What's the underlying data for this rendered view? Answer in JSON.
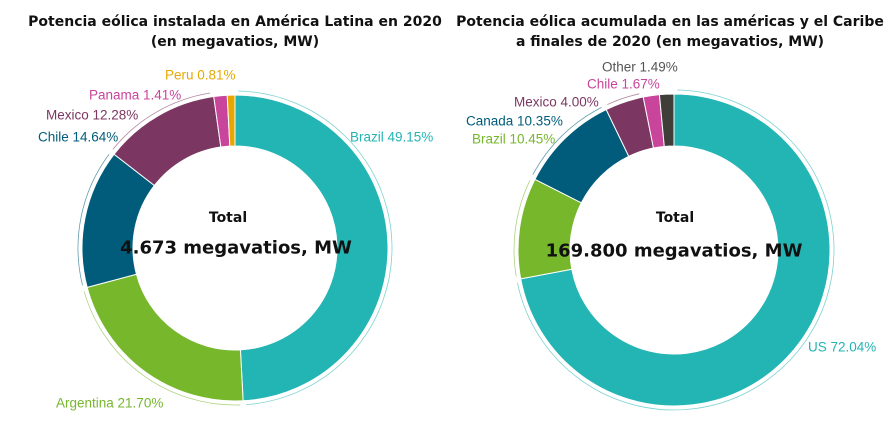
{
  "chart_data": [
    {
      "type": "pie",
      "title": "Potencia eólica instalada en América Latina en 2020 (en megavatios, MW)",
      "title_lines": [
        "Potencia eólica instalada en América Latina en 2020",
        "(en megavatios, MW)"
      ],
      "center_label": "Total",
      "center_value": "4.673 megavatios, MW",
      "slices": [
        {
          "name": "Brazil",
          "value": 49.15,
          "label": "Brazil 49.15%",
          "color": "#23b4b4"
        },
        {
          "name": "Argentina",
          "value": 21.7,
          "label": "Argentina 21.70%",
          "color": "#76b72c"
        },
        {
          "name": "Chile",
          "value": 14.64,
          "label": "Chile 14.64%",
          "color": "#005c7a"
        },
        {
          "name": "Mexico",
          "value": 12.28,
          "label": "Mexico 12.28%",
          "color": "#7b3661"
        },
        {
          "name": "Panama",
          "value": 1.41,
          "label": "Panama 1.41%",
          "color": "#c9449b"
        },
        {
          "name": "Peru",
          "value": 0.81,
          "label": "Peru 0.81%",
          "color": "#e6a800"
        }
      ]
    },
    {
      "type": "pie",
      "title": "Potencia eólica acumulada en las américas y el Caribe a finales de 2020 (en megavatios, MW)",
      "title_lines": [
        "Potencia eólica acumulada en las américas y el Caribe",
        "a finales de 2020 (en megavatios, MW)"
      ],
      "center_label": "Total",
      "center_value": "169.800 megavatios, MW",
      "slices": [
        {
          "name": "US",
          "value": 72.04,
          "label": "US 72.04%",
          "color": "#23b4b4"
        },
        {
          "name": "Brazil",
          "value": 10.45,
          "label": "Brazil 10.45%",
          "color": "#76b72c"
        },
        {
          "name": "Canada",
          "value": 10.35,
          "label": "Canada 10.35%",
          "color": "#005c7a"
        },
        {
          "name": "Mexico",
          "value": 4.0,
          "label": "Mexico 4.00%",
          "color": "#7b3661"
        },
        {
          "name": "Chile",
          "value": 1.67,
          "label": "Chile 1.67%",
          "color": "#c9449b"
        },
        {
          "name": "Other",
          "value": 1.49,
          "label": "Other 1.49%",
          "color": "#3f3e39"
        }
      ]
    }
  ]
}
